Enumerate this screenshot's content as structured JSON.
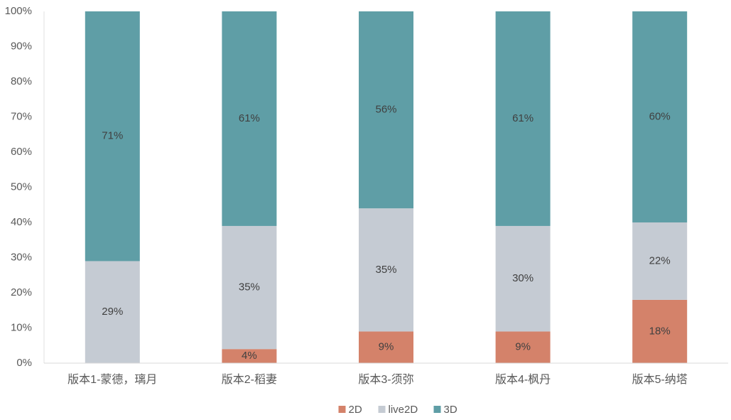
{
  "chart_data": {
    "type": "stacked_bar_100",
    "categories": [
      "版本1-蒙德，璃月",
      "版本2-稻妻",
      "版本3-须弥",
      "版本4-枫丹",
      "版本5-纳塔"
    ],
    "series": [
      {
        "name": "2D",
        "color": "#d4826a",
        "values": [
          0,
          4,
          9,
          9,
          18
        ],
        "value_labels": [
          null,
          "4%",
          "9%",
          "9%",
          "18%"
        ]
      },
      {
        "name": "live2D",
        "color": "#c5cbd3",
        "values": [
          29,
          35,
          35,
          30,
          22
        ],
        "value_labels": [
          "29%",
          "35%",
          "35%",
          "30%",
          "22%"
        ]
      },
      {
        "name": "3D",
        "color": "#5f9ea6",
        "values": [
          71,
          61,
          56,
          61,
          60
        ],
        "value_labels": [
          "71%",
          "61%",
          "56%",
          "61%",
          "60%"
        ]
      }
    ],
    "ylim": [
      0,
      100
    ],
    "yticks": [
      {
        "value": 0,
        "label": "0%"
      },
      {
        "value": 10,
        "label": "10%"
      },
      {
        "value": 20,
        "label": "20%"
      },
      {
        "value": 30,
        "label": "30%"
      },
      {
        "value": 40,
        "label": "40%"
      },
      {
        "value": 50,
        "label": "50%"
      },
      {
        "value": 60,
        "label": "60%"
      },
      {
        "value": 70,
        "label": "70%"
      },
      {
        "value": 80,
        "label": "80%"
      },
      {
        "value": 90,
        "label": "90%"
      },
      {
        "value": 100,
        "label": "100%"
      }
    ],
    "grid": false,
    "legend": "bottom"
  }
}
